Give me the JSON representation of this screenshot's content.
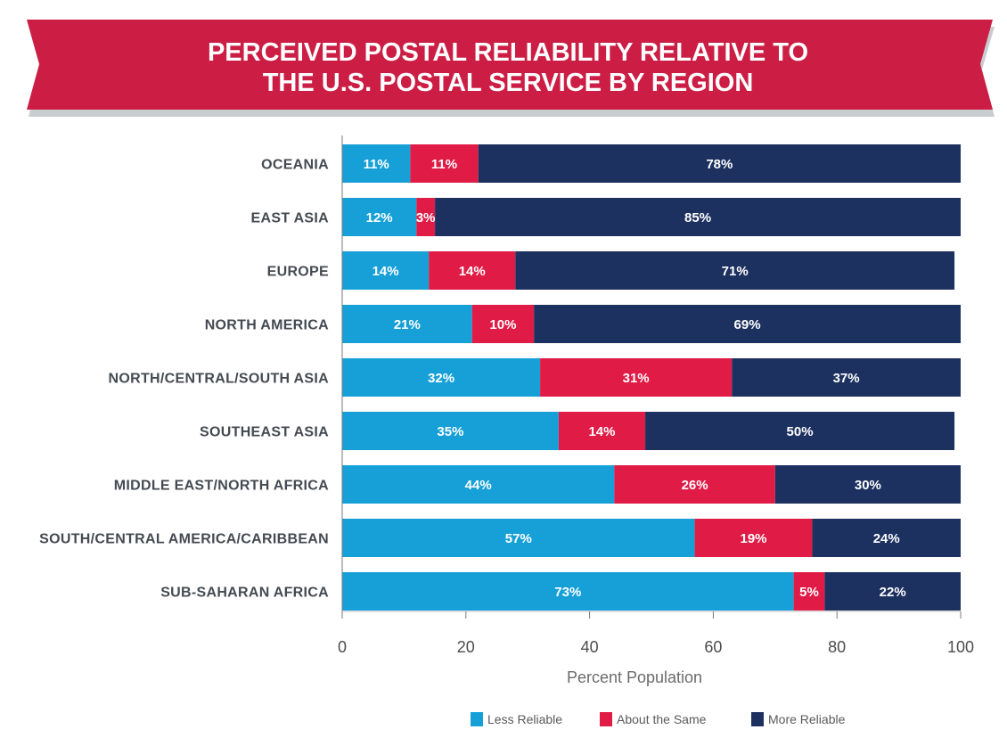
{
  "chart_data": {
    "type": "bar",
    "orientation": "horizontal",
    "stacked": true,
    "title_lines": [
      "PERCEIVED POSTAL RELIABILITY RELATIVE TO",
      "THE U.S. POSTAL SERVICE BY REGION"
    ],
    "xlabel": "Percent Population",
    "ylabel": "",
    "xlim": [
      0,
      100
    ],
    "xticks": [
      0,
      20,
      40,
      60,
      80,
      100
    ],
    "grid": false,
    "legend_position": "bottom",
    "categories": [
      "OCEANIA",
      "EAST ASIA",
      "EUROPE",
      "NORTH AMERICA",
      "NORTH/CENTRAL/SOUTH ASIA",
      "SOUTHEAST ASIA",
      "MIDDLE EAST/NORTH AFRICA",
      "SOUTH/CENTRAL AMERICA/CARIBBEAN",
      "SUB-SAHARAN AFRICA"
    ],
    "series": [
      {
        "name": "Less Reliable",
        "color": "#17a0d8",
        "values": [
          11,
          12,
          14,
          21,
          32,
          35,
          44,
          57,
          73
        ]
      },
      {
        "name": "About the Same",
        "color": "#e01b46",
        "values": [
          11,
          3,
          14,
          10,
          31,
          14,
          26,
          19,
          5
        ]
      },
      {
        "name": "More Reliable",
        "color": "#1d3160",
        "values": [
          78,
          85,
          71,
          69,
          37,
          50,
          30,
          24,
          22
        ]
      }
    ],
    "value_suffix": "%"
  },
  "colors": {
    "banner": "#cc1e45",
    "banner_shadow": "#c9cdd0",
    "axis": "#7a7a7a"
  }
}
